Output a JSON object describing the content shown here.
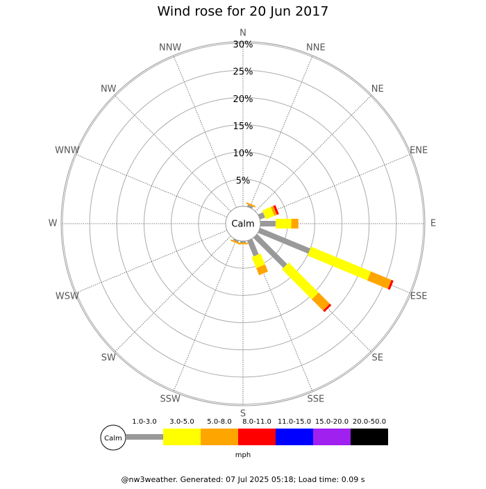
{
  "chart_data": {
    "type": "windrose",
    "title": "Wind rose for 20 Jun 2017",
    "categories": [
      "N",
      "NNE",
      "NE",
      "ENE",
      "E",
      "ESE",
      "SE",
      "SSE",
      "S",
      "SSW",
      "SW",
      "WSW",
      "W",
      "WNW",
      "NW",
      "NNW"
    ],
    "series": [
      {
        "name": "1.0-3.0",
        "color": "#999999",
        "values": [
          0,
          0.4,
          0,
          1.0,
          2.8,
          10.0,
          7.8,
          3.1,
          0.3,
          0.3,
          0,
          0,
          0,
          0,
          0,
          0
        ]
      },
      {
        "name": "3.0-5.0",
        "color": "#ffff00",
        "values": [
          0,
          0,
          0,
          1.7,
          2.9,
          11.9,
          7.8,
          2.2,
          0,
          0,
          0,
          0,
          0,
          0,
          0,
          0
        ]
      },
      {
        "name": "5.0-8.0",
        "color": "#ffa500",
        "values": [
          0,
          0.3,
          0,
          0.5,
          1.3,
          4.1,
          2.9,
          1.4,
          0.3,
          0.3,
          0,
          0,
          0,
          0,
          0,
          0
        ]
      },
      {
        "name": "8.0-11.0",
        "color": "#ff0000",
        "values": [
          0,
          0,
          0,
          0.4,
          0,
          0.4,
          0.4,
          0,
          0,
          0,
          0,
          0,
          0,
          0,
          0,
          0
        ]
      },
      {
        "name": "11.0-15.0",
        "color": "#0000ff",
        "values": [
          0,
          0,
          0,
          0,
          0,
          0,
          0,
          0,
          0,
          0,
          0,
          0,
          0,
          0,
          0,
          0
        ]
      },
      {
        "name": "15.0-20.0",
        "color": "#a020f0",
        "values": [
          0,
          0,
          0,
          0,
          0,
          0,
          0,
          0,
          0,
          0,
          0,
          0,
          0,
          0,
          0,
          0
        ]
      },
      {
        "name": "20.0-50.0",
        "color": "#000000",
        "values": [
          0,
          0,
          0,
          0,
          0,
          0,
          0,
          0,
          0,
          0,
          0,
          0,
          0,
          0,
          0,
          0
        ]
      }
    ],
    "rlim": [
      0,
      30
    ],
    "rticks": [
      {
        "value": 5,
        "label": "5%"
      },
      {
        "value": 10,
        "label": "10%"
      },
      {
        "value": 15,
        "label": "15%"
      },
      {
        "value": 20,
        "label": "20%"
      },
      {
        "value": 25,
        "label": "25%"
      },
      {
        "value": 30,
        "label": "30%"
      }
    ],
    "calm_label": "Calm",
    "unit": "mph",
    "footer": "@nw3weather. Generated: 07 Jul 2025 05:18; Load time: 0.09 s"
  }
}
